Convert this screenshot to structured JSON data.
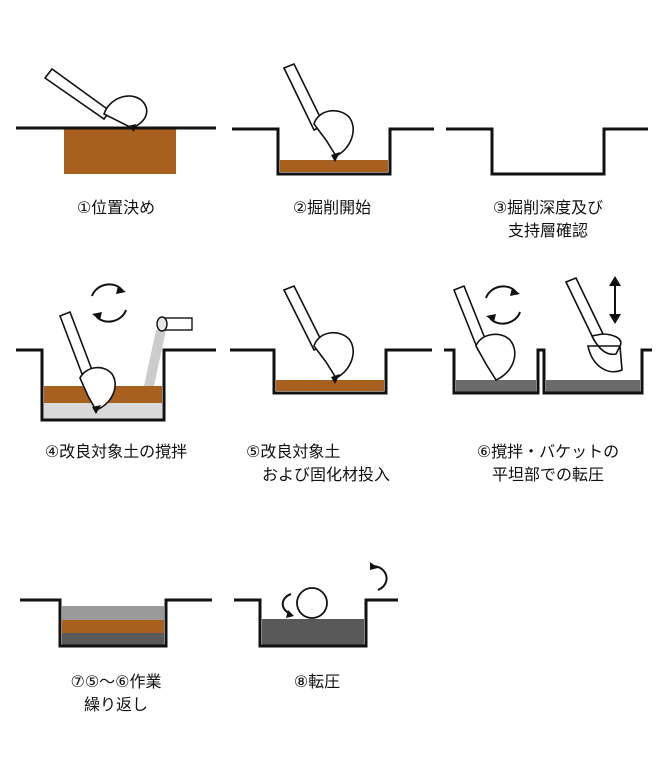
{
  "steps": [
    {
      "caption": [
        "①位置決め"
      ]
    },
    {
      "caption": [
        "②掘削開始"
      ]
    },
    {
      "caption": [
        "③掘削深度及び",
        "支持層確認"
      ]
    },
    {
      "caption": [
        "④改良対象土の撹拌"
      ]
    },
    {
      "caption": [
        "⑤改良対象土",
        "および固化材投入"
      ]
    },
    {
      "caption": [
        "⑥撹拌・バケットの",
        "平坦部での転圧"
      ]
    },
    {
      "caption": [
        "⑦⑤～⑥作業",
        "繰り返し"
      ]
    },
    {
      "caption": [
        "⑧転圧"
      ]
    }
  ],
  "colors": {
    "soil": "#a8601f",
    "cement": "#d9d9d9",
    "mixed": "#6b6b6b",
    "compacted": "#595959",
    "gray_light": "#9a9a9a",
    "line": "#111111",
    "powder": "#cccccc"
  }
}
